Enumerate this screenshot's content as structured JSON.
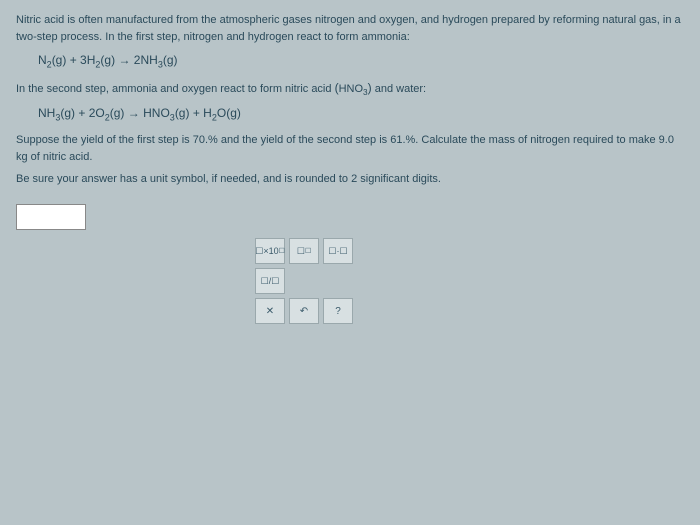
{
  "intro": "Nitric acid is often manufactured from the atmospheric gases nitrogen and oxygen, and hydrogen prepared by reforming natural gas, in a two-step process. In the first step, nitrogen and hydrogen react to form ammonia:",
  "eq1": {
    "lhs1": "N",
    "sub1": "2",
    "g1": "(g)",
    "plus": " + ",
    "coef2": "3",
    "lhs2": "H",
    "sub2": "2",
    "g2": "(g)",
    "arrow": " → ",
    "coef3": "2",
    "rhs": "NH",
    "sub3": "3",
    "g3": "(g)"
  },
  "step2_text_a": "In the second step, ammonia and oxygen react to form nitric acid ",
  "step2_formula": {
    "open": "(",
    "h": "HNO",
    "sub": "3",
    "close": ")"
  },
  "step2_text_b": " and water:",
  "eq2": {
    "a": "NH",
    "as": "3",
    "ag": "(g)",
    "plus1": " + ",
    "bc": "2",
    "b": "O",
    "bs": "2",
    "bg": "(g)",
    "arrow": " → ",
    "c": "HNO",
    "cs": "3",
    "cg": "(g)",
    "plus2": " + ",
    "d": "H",
    "ds": "2",
    "de": "O",
    "dg": "(g)"
  },
  "suppose": "Suppose the yield of the first step is 70.% and the yield of the second step is 61.%. Calculate the mass of nitrogen required to make 9.0 kg of nitric acid.",
  "besure": "Be sure your answer has a unit symbol, if needed, and is rounded to 2 significant digits.",
  "tools": {
    "t1": "☐×10",
    "t2": "☐",
    "t3": "☐·☐",
    "t4": "☐/☐",
    "t5": "✕",
    "t6": "↶",
    "t7": "?"
  },
  "colors": {
    "bg": "#b8c4c8",
    "text": "#2a4a5a",
    "toolbg": "#d8e0e2",
    "toolborder": "#9aa8ac"
  }
}
